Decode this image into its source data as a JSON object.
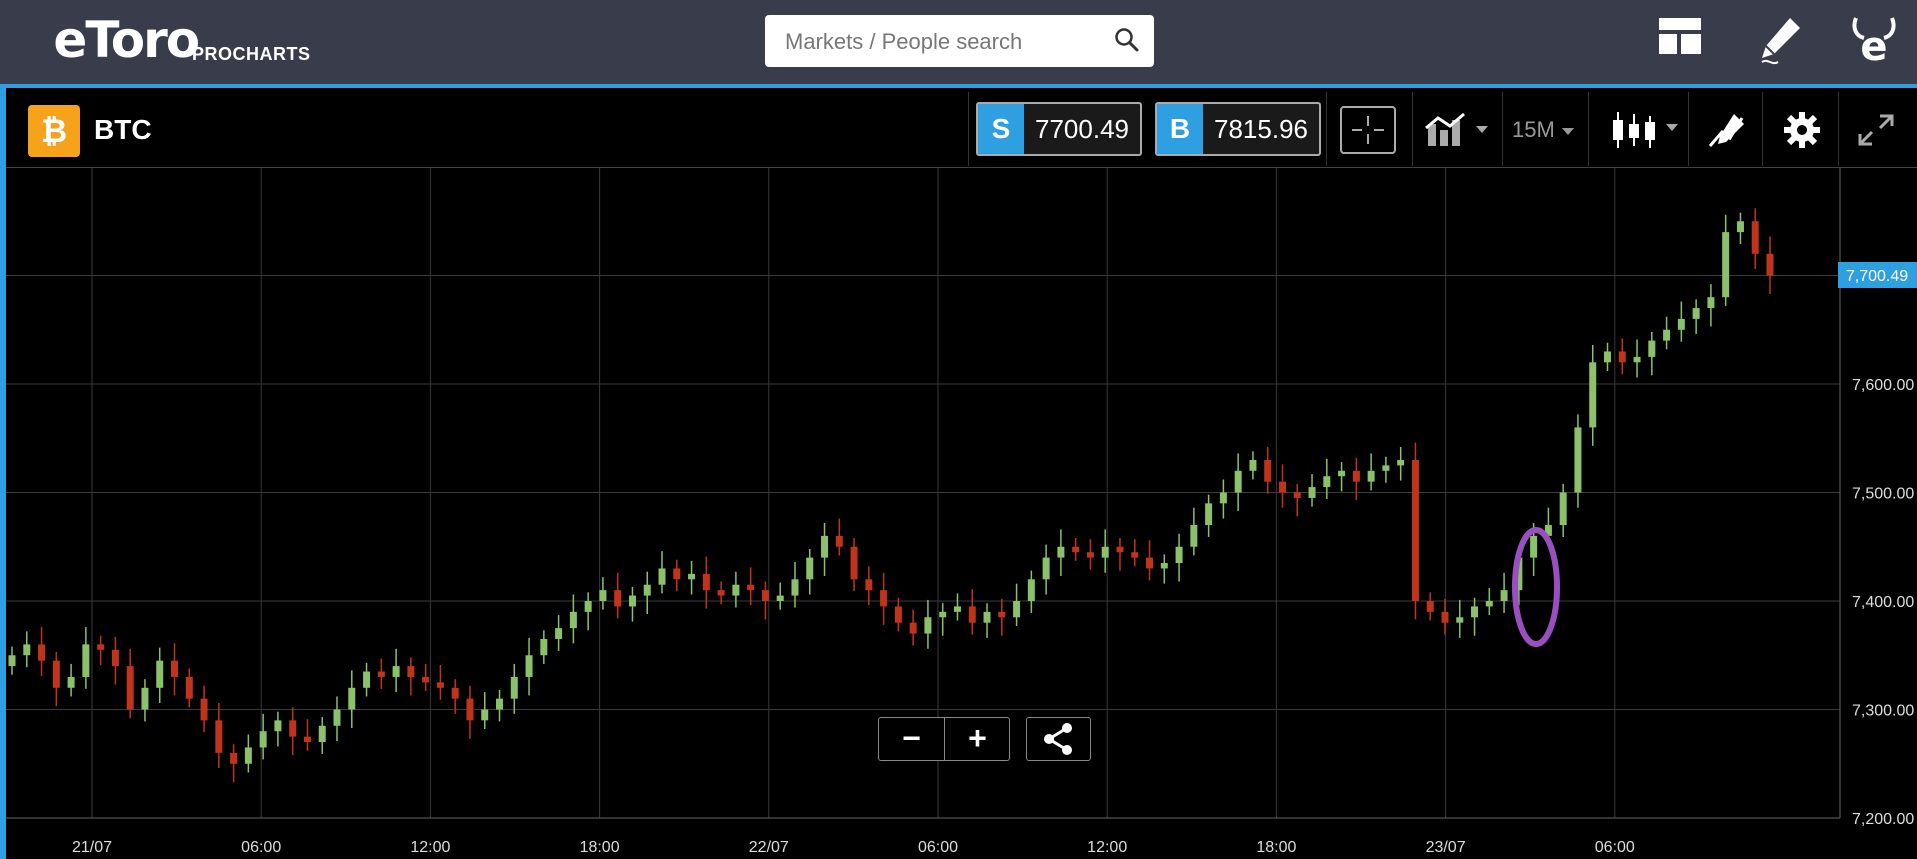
{
  "app": {
    "brand": "eToro",
    "sub": "PROCHARTS"
  },
  "search": {
    "placeholder": "Markets / People search"
  },
  "instrument": {
    "symbol": "BTC",
    "coin_glyph": "₿",
    "accent": "#f7a21b"
  },
  "sell": {
    "label": "S",
    "value": "7700.49"
  },
  "buy": {
    "label": "B",
    "value": "7815.96"
  },
  "toolbar": {
    "timeframe": "15M"
  },
  "current_price_label": "7,700.49",
  "colors": {
    "up": "#8ac16a",
    "down": "#c0341c",
    "accent": "#2e9fe0",
    "annotation": "#9a4fc0"
  },
  "chart_data": {
    "type": "candlestick",
    "title": "",
    "x_ticks": [
      "21/07",
      "06:00",
      "12:00",
      "18:00",
      "22/07",
      "06:00",
      "12:00",
      "18:00",
      "23/07",
      "06:00"
    ],
    "y_ticks": [
      "7,200.00",
      "7,300.00",
      "7,400.00",
      "7,500.00",
      "7,600.00"
    ],
    "ylim": [
      7200,
      7800
    ],
    "bar_interval": "15M",
    "last_price": 7700.49,
    "closes": [
      7350,
      7360,
      7345,
      7320,
      7330,
      7360,
      7355,
      7340,
      7300,
      7320,
      7345,
      7330,
      7310,
      7290,
      7260,
      7250,
      7265,
      7280,
      7290,
      7275,
      7270,
      7285,
      7300,
      7320,
      7335,
      7330,
      7340,
      7330,
      7325,
      7320,
      7310,
      7290,
      7300,
      7310,
      7330,
      7350,
      7365,
      7375,
      7390,
      7400,
      7410,
      7395,
      7405,
      7415,
      7430,
      7420,
      7425,
      7410,
      7405,
      7415,
      7410,
      7400,
      7405,
      7420,
      7440,
      7460,
      7450,
      7420,
      7410,
      7395,
      7380,
      7370,
      7385,
      7390,
      7395,
      7380,
      7390,
      7385,
      7400,
      7420,
      7440,
      7450,
      7445,
      7440,
      7450,
      7445,
      7440,
      7430,
      7435,
      7450,
      7470,
      7490,
      7500,
      7520,
      7530,
      7510,
      7500,
      7495,
      7505,
      7515,
      7520,
      7510,
      7520,
      7525,
      7530,
      7400,
      7390,
      7380,
      7385,
      7395,
      7400,
      7410,
      7440,
      7460,
      7470,
      7500,
      7560,
      7620,
      7630,
      7620,
      7625,
      7640,
      7650,
      7660,
      7670,
      7680,
      7740,
      7750,
      7720,
      7700
    ]
  }
}
